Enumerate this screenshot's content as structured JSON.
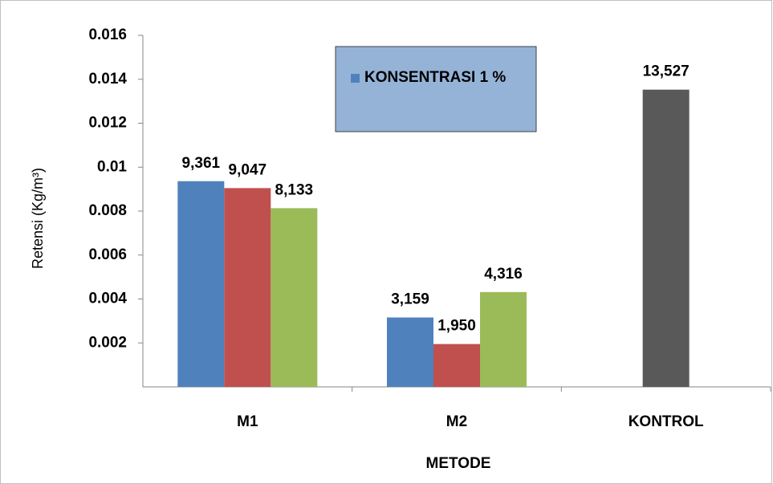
{
  "chart_data": {
    "type": "bar",
    "x_label": "METODE",
    "y_label": "Retensi (Kg/m³)",
    "categories": [
      "M1",
      "M2",
      "KONTROL"
    ],
    "series": [
      {
        "name": "KONSENTRASI 1 %",
        "color": "#4f81bd",
        "values": [
          0.009361,
          0.003159,
          null
        ],
        "value_labels": [
          "9,361",
          "3,159",
          null
        ]
      },
      {
        "color": "#c0504d",
        "values": [
          0.009047,
          0.00195,
          null
        ],
        "value_labels": [
          "9,047",
          "1,950",
          null
        ]
      },
      {
        "color": "#9bbb59",
        "values": [
          0.008133,
          0.004316,
          null
        ],
        "value_labels": [
          "8,133",
          "4,316",
          null
        ]
      },
      {
        "color": "#595959",
        "values": [
          null,
          null,
          0.013527
        ],
        "value_labels": [
          null,
          null,
          "13,527"
        ]
      }
    ],
    "ylim": [
      0,
      0.016
    ],
    "yticks": [
      0.002,
      0.004,
      0.006,
      0.008,
      0.01,
      0.012,
      0.014,
      0.016
    ],
    "legend_position": "top",
    "legend_color": "#95b3d7",
    "grid": false
  }
}
